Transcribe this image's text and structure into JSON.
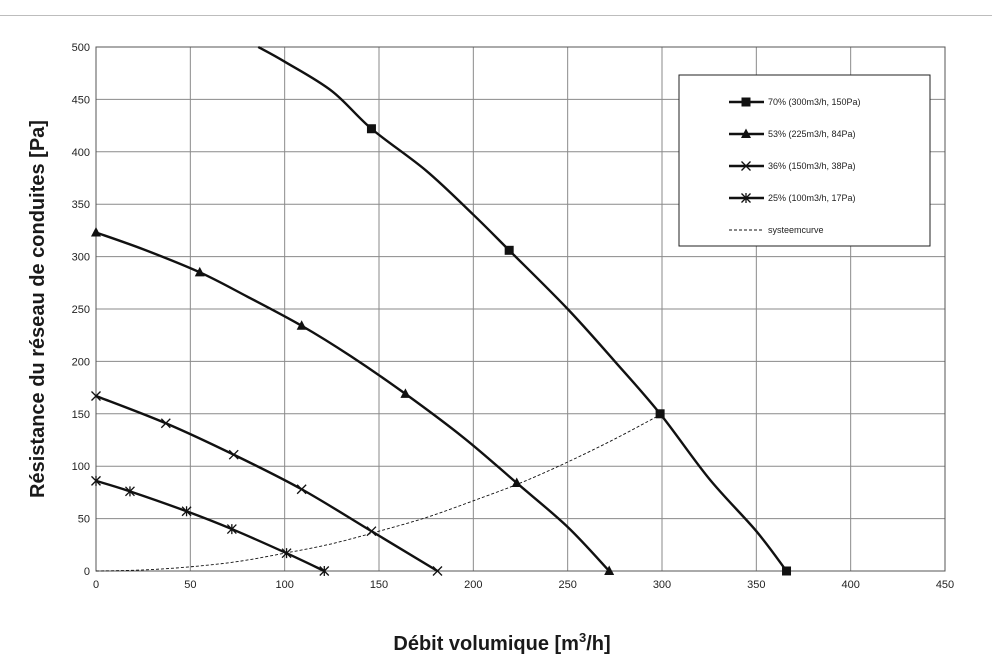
{
  "chart_data": {
    "type": "line",
    "xlabel": "Débit volumique [m³/h]",
    "ylabel": "Résistance du réseau de conduites [Pa]",
    "xlim": [
      0,
      450
    ],
    "ylim": [
      0,
      500
    ],
    "xticks": [
      0,
      50,
      100,
      150,
      200,
      250,
      300,
      350,
      400,
      450
    ],
    "yticks": [
      0,
      50,
      100,
      150,
      200,
      250,
      300,
      350,
      400,
      450,
      500
    ],
    "grid": true,
    "legend_position": "top-right",
    "series": [
      {
        "name": "70% (300m3/h, 150Pa)",
        "marker": "square",
        "line": "solid",
        "markers": [
          [
            146,
            422
          ],
          [
            219,
            306
          ],
          [
            299,
            150
          ],
          [
            366,
            0
          ]
        ],
        "values": [
          [
            86,
            500
          ],
          [
            100,
            486
          ],
          [
            125,
            458
          ],
          [
            146,
            422
          ],
          [
            175,
            382
          ],
          [
            200,
            340
          ],
          [
            219,
            306
          ],
          [
            250,
            250
          ],
          [
            275,
            200
          ],
          [
            299,
            150
          ],
          [
            325,
            88
          ],
          [
            350,
            38
          ],
          [
            366,
            0
          ]
        ]
      },
      {
        "name": "53% (225m3/h, 84Pa)",
        "marker": "triangle",
        "line": "solid",
        "markers": [
          [
            0,
            323
          ],
          [
            55,
            285
          ],
          [
            109,
            234
          ],
          [
            164,
            169
          ],
          [
            223,
            84
          ],
          [
            272,
            0
          ]
        ],
        "values": [
          [
            0,
            323
          ],
          [
            25,
            307
          ],
          [
            55,
            285
          ],
          [
            80,
            262
          ],
          [
            109,
            234
          ],
          [
            135,
            205
          ],
          [
            164,
            169
          ],
          [
            195,
            127
          ],
          [
            223,
            84
          ],
          [
            250,
            42
          ],
          [
            272,
            0
          ]
        ]
      },
      {
        "name": "36% (150m3/h, 38Pa)",
        "marker": "x",
        "line": "solid",
        "markers": [
          [
            0,
            167
          ],
          [
            37,
            141
          ],
          [
            73,
            111
          ],
          [
            109,
            78
          ],
          [
            146,
            38
          ],
          [
            181,
            0
          ]
        ],
        "values": [
          [
            0,
            167
          ],
          [
            37,
            141
          ],
          [
            73,
            111
          ],
          [
            109,
            78
          ],
          [
            146,
            38
          ],
          [
            181,
            0
          ]
        ]
      },
      {
        "name": "25% (100m3/h, 17Pa)",
        "marker": "star",
        "line": "solid",
        "markers": [
          [
            0,
            86
          ],
          [
            18,
            76
          ],
          [
            48,
            57
          ],
          [
            72,
            40
          ],
          [
            101,
            17
          ],
          [
            121,
            0
          ]
        ],
        "values": [
          [
            0,
            86
          ],
          [
            18,
            76
          ],
          [
            48,
            57
          ],
          [
            72,
            40
          ],
          [
            101,
            17
          ],
          [
            121,
            0
          ]
        ]
      },
      {
        "name": "systeemcurve",
        "marker": "none",
        "line": "dashed",
        "values": [
          [
            0,
            0
          ],
          [
            25,
            1
          ],
          [
            50,
            4
          ],
          [
            75,
            9
          ],
          [
            100,
            17
          ],
          [
            125,
            26
          ],
          [
            150,
            38
          ],
          [
            175,
            51
          ],
          [
            200,
            67
          ],
          [
            225,
            84
          ],
          [
            250,
            104
          ],
          [
            275,
            126
          ],
          [
            300,
            150
          ]
        ]
      }
    ]
  }
}
